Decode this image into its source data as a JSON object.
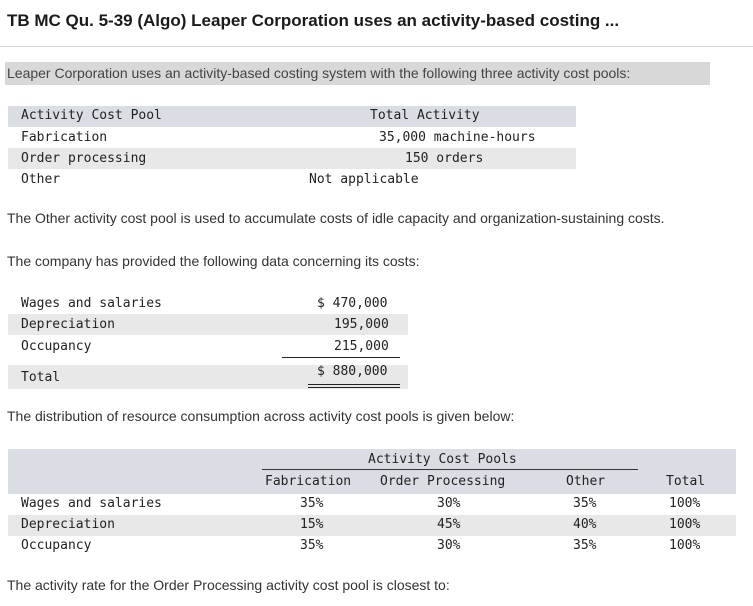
{
  "title": "TB MC Qu. 5-39 (Algo) Leaper Corporation uses an activity-based costing ...",
  "intro": "Leaper Corporation uses an activity-based costing system with the following three activity cost pools:",
  "activity_table": {
    "headers": [
      "Activity Cost Pool",
      "Total Activity"
    ],
    "rows": [
      {
        "pool": "Fabrication",
        "activity": "35,000 machine-hours"
      },
      {
        "pool": "Order processing",
        "activity": "150 orders"
      },
      {
        "pool": "Other",
        "activity": "Not applicable"
      }
    ]
  },
  "other_note": "The Other activity cost pool is used to accumulate costs of idle capacity and organization-sustaining costs.",
  "costs_intro": "The company has provided the following data concerning its costs:",
  "cost_table": {
    "rows": [
      {
        "label": "Wages and salaries",
        "value": "$ 470,000"
      },
      {
        "label": "Depreciation",
        "value": "195,000"
      },
      {
        "label": "Occupancy",
        "value": "215,000"
      }
    ],
    "total_label": "Total",
    "total_value": "$ 880,000"
  },
  "distribution_intro": "The distribution of resource consumption across activity cost pools is given below:",
  "distribution_table": {
    "group_header": "Activity Cost Pools",
    "columns": [
      "Fabrication",
      "Order Processing",
      "Other",
      "Total"
    ],
    "rows": [
      {
        "label": "Wages and salaries",
        "values": [
          "35%",
          "30%",
          "35%",
          "100%"
        ]
      },
      {
        "label": "Depreciation",
        "values": [
          "15%",
          "45%",
          "40%",
          "100%"
        ]
      },
      {
        "label": "Occupancy",
        "values": [
          "35%",
          "30%",
          "35%",
          "100%"
        ]
      }
    ]
  },
  "question": "The activity rate for the Order Processing activity cost pool is closest to:"
}
